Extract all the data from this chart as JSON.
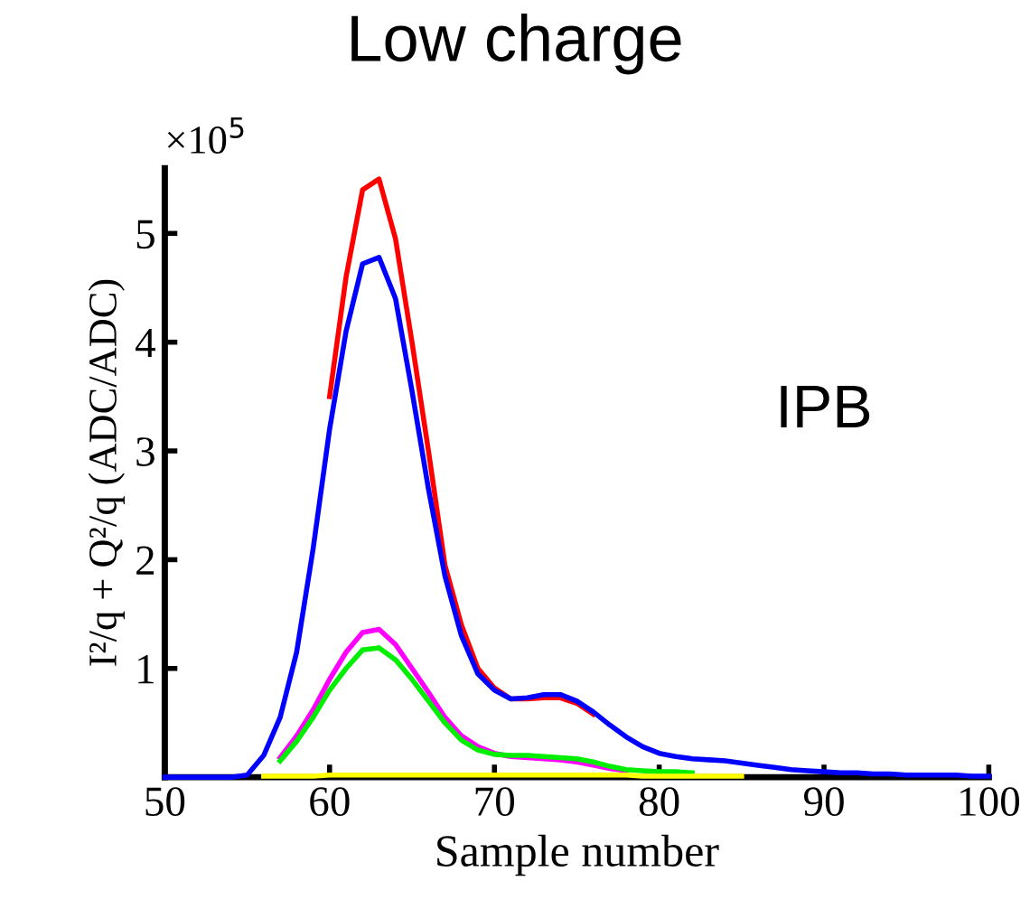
{
  "chart_data": {
    "type": "line",
    "title": "Low charge",
    "xlabel": "Sample number",
    "ylabel": "I²/q + Q²/q (ADC/ADC)",
    "annotations": [
      "×10$^{5}$",
      "IPB"
    ],
    "x": [
      50,
      51,
      52,
      53,
      54,
      55,
      56,
      57,
      58,
      59,
      60,
      61,
      62,
      63,
      64,
      65,
      66,
      67,
      68,
      69,
      70,
      71,
      72,
      73,
      74,
      75,
      76,
      77,
      78,
      79,
      80,
      81,
      82,
      83,
      84,
      85,
      86,
      87,
      88,
      89,
      90,
      91,
      92,
      93,
      94,
      95,
      96,
      97,
      98,
      99,
      100
    ],
    "xlim": [
      50,
      100
    ],
    "xticks": [
      50,
      60,
      70,
      80,
      90,
      100
    ],
    "ylim": [
      0,
      5.6
    ],
    "yticks": [
      1,
      2,
      3,
      4,
      5
    ],
    "grid": false,
    "legend": false,
    "series": [
      {
        "color": "#ff0000",
        "values": [
          null,
          null,
          null,
          null,
          null,
          null,
          null,
          null,
          null,
          null,
          3.5,
          4.6,
          5.4,
          5.5,
          4.95,
          4.0,
          3.0,
          1.95,
          1.4,
          1.0,
          0.82,
          0.72,
          0.72,
          0.73,
          0.73,
          0.68,
          0.58,
          null,
          null,
          null,
          null,
          null,
          null,
          null,
          null,
          null,
          null,
          null,
          null,
          null,
          null,
          null,
          null,
          null,
          null,
          null,
          null,
          null,
          null,
          null,
          null
        ]
      },
      {
        "color": "#0000ff",
        "values": [
          0,
          0,
          0,
          0,
          0,
          0.02,
          0.2,
          0.55,
          1.15,
          2.1,
          3.2,
          4.1,
          4.72,
          4.78,
          4.4,
          3.55,
          2.65,
          1.85,
          1.3,
          0.95,
          0.8,
          0.72,
          0.73,
          0.76,
          0.76,
          0.7,
          0.6,
          0.48,
          0.37,
          0.28,
          0.22,
          0.19,
          0.17,
          0.16,
          0.15,
          0.13,
          0.11,
          0.09,
          0.07,
          0.06,
          0.05,
          0.04,
          0.04,
          0.03,
          0.03,
          0.02,
          0.02,
          0.02,
          0.02,
          0.01,
          0.01
        ]
      },
      {
        "color": "#ff00ff",
        "values": [
          null,
          null,
          null,
          null,
          null,
          null,
          null,
          0.18,
          0.38,
          0.62,
          0.9,
          1.15,
          1.33,
          1.36,
          1.22,
          1.0,
          0.78,
          0.55,
          0.38,
          0.28,
          0.22,
          0.19,
          0.18,
          0.17,
          0.16,
          0.14,
          0.11,
          0.08,
          0.06,
          null,
          null,
          null,
          null,
          null,
          null,
          null,
          null,
          null,
          null,
          null,
          null,
          null,
          null,
          null,
          null,
          null,
          null,
          null,
          null,
          null,
          null
        ]
      },
      {
        "color": "#00ee00",
        "values": [
          null,
          null,
          null,
          null,
          null,
          null,
          null,
          0.15,
          0.33,
          0.55,
          0.8,
          1.0,
          1.17,
          1.19,
          1.08,
          0.9,
          0.7,
          0.5,
          0.34,
          0.25,
          0.21,
          0.2,
          0.2,
          0.19,
          0.18,
          0.17,
          0.14,
          0.1,
          0.07,
          0.06,
          0.05,
          0.05,
          0.04,
          null,
          null,
          null,
          null,
          null,
          null,
          null,
          null,
          null,
          null,
          null,
          null,
          null,
          null,
          null,
          null,
          null,
          null
        ]
      },
      {
        "color": "#ffff00",
        "values": [
          null,
          null,
          null,
          null,
          null,
          null,
          0.01,
          0.01,
          0.01,
          0.01,
          0.02,
          0.02,
          0.02,
          0.02,
          0.02,
          0.02,
          0.02,
          0.02,
          0.02,
          0.02,
          0.02,
          0.02,
          0.02,
          0.02,
          0.02,
          0.02,
          0.02,
          0.02,
          0.02,
          0.01,
          0.01,
          0.01,
          0.01,
          0.01,
          0.01,
          0.01,
          null,
          null,
          null,
          null,
          null,
          null,
          null,
          null,
          null,
          null,
          null,
          null,
          null,
          null,
          null
        ]
      }
    ]
  }
}
